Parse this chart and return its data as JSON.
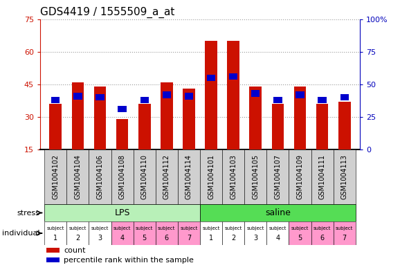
{
  "title": "GDS4419 / 1555509_a_at",
  "samples": [
    "GSM1004102",
    "GSM1004104",
    "GSM1004106",
    "GSM1004108",
    "GSM1004110",
    "GSM1004112",
    "GSM1004114",
    "GSM1004101",
    "GSM1004103",
    "GSM1004105",
    "GSM1004107",
    "GSM1004109",
    "GSM1004111",
    "GSM1004113"
  ],
  "count_values": [
    36,
    46,
    44,
    29,
    36,
    46,
    43,
    65,
    65,
    44,
    36,
    44,
    36,
    37
  ],
  "percentile_values": [
    38,
    41,
    40,
    31,
    38,
    42,
    41,
    55,
    56,
    43,
    38,
    42,
    38,
    40
  ],
  "left_ylim": [
    15,
    75
  ],
  "left_yticks": [
    15,
    30,
    45,
    60,
    75
  ],
  "right_ylim": [
    0,
    100
  ],
  "right_yticks": [
    0,
    25,
    50,
    75,
    100
  ],
  "stress_groups": [
    {
      "label": "LPS",
      "start": 0,
      "end": 7,
      "color": "#B8F0B8"
    },
    {
      "label": "saline",
      "start": 7,
      "end": 14,
      "color": "#55DD55"
    }
  ],
  "individual_colors": [
    "#FFFFFF",
    "#FFFFFF",
    "#FFFFFF",
    "#FF99CC",
    "#FF99CC",
    "#FF99CC",
    "#FF99CC",
    "#FFFFFF",
    "#FFFFFF",
    "#FFFFFF",
    "#FFFFFF",
    "#FF99CC",
    "#FF99CC",
    "#FF99CC"
  ],
  "individual_numbers": [
    "1",
    "2",
    "3",
    "4",
    "5",
    "6",
    "7",
    "1",
    "2",
    "3",
    "4",
    "5",
    "6",
    "7"
  ],
  "bar_color": "#CC1100",
  "marker_color": "#0000CC",
  "bar_width": 0.55,
  "grid_color": "#999999",
  "background_color": "#ffffff",
  "title_fontsize": 11,
  "tick_fontsize": 8,
  "sample_label_fontsize": 7,
  "left_axis_color": "#CC1100",
  "right_axis_color": "#0000BB",
  "gsm_box_color": "#D0D0D0",
  "legend_items": [
    {
      "color": "#CC1100",
      "label": "count"
    },
    {
      "color": "#0000CC",
      "label": "percentile rank within the sample"
    }
  ]
}
